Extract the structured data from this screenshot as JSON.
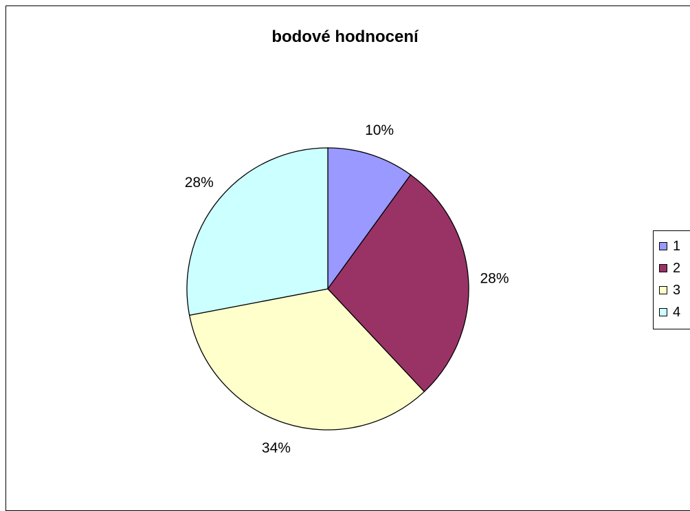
{
  "chart_data": {
    "type": "pie",
    "title": "bodové hodnocení",
    "categories": [
      "1",
      "2",
      "3",
      "4"
    ],
    "values": [
      10,
      28,
      34,
      28
    ],
    "data_labels": [
      "10%",
      "28%",
      "34%",
      "28%"
    ],
    "colors": [
      "#9999ff",
      "#993366",
      "#ffffcc",
      "#ccffff"
    ],
    "legend": {
      "placement": "right",
      "entries": [
        "1",
        "2",
        "3",
        "4"
      ]
    }
  }
}
